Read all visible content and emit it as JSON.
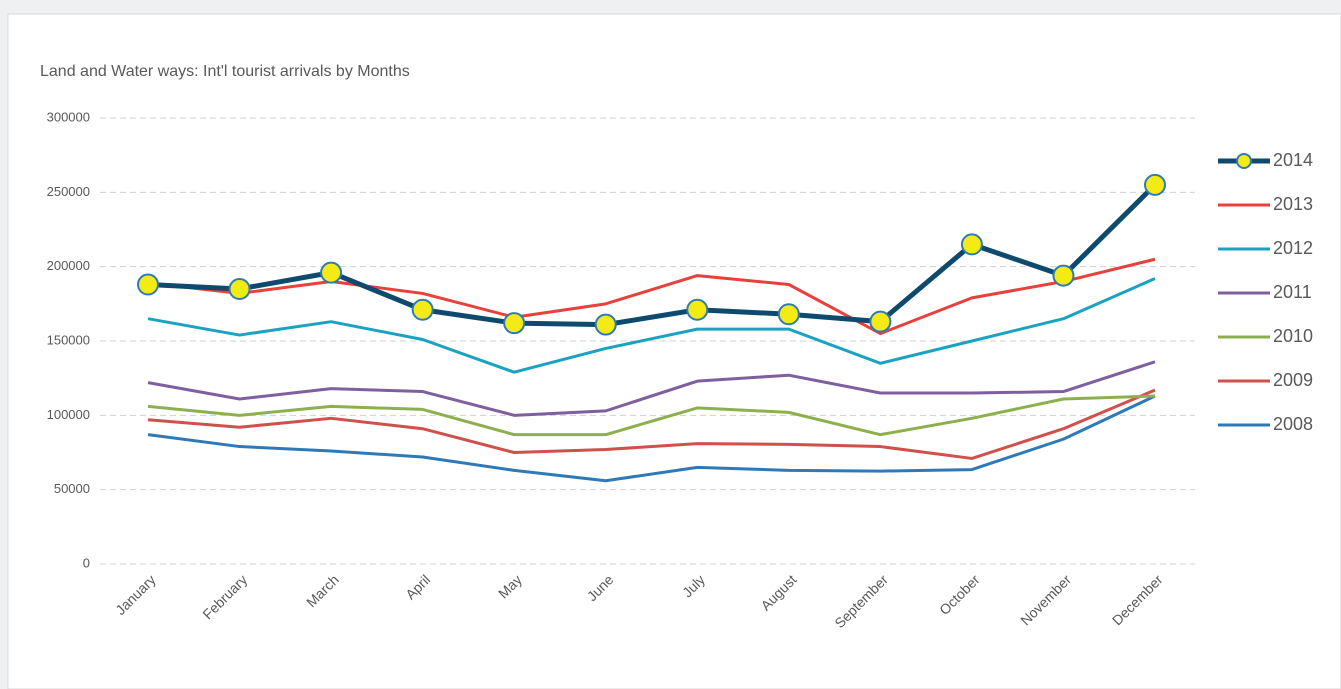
{
  "chart_data": {
    "type": "line",
    "title": "Land and Water ways: Int'l tourist arrivals by Months",
    "categories": [
      "January",
      "February",
      "March",
      "April",
      "May",
      "June",
      "July",
      "August",
      "September",
      "October",
      "November",
      "December"
    ],
    "series": [
      {
        "name": "2014",
        "color": "#0d4a6e",
        "values": [
          188000,
          185000,
          196000,
          171000,
          162000,
          161000,
          171000,
          168000,
          163000,
          215000,
          194000,
          255000
        ]
      },
      {
        "name": "2013",
        "color": "#e8403a",
        "values": [
          189000,
          182000,
          190000,
          182000,
          166000,
          175000,
          194000,
          188000,
          155000,
          179000,
          190000,
          205000
        ]
      },
      {
        "name": "2012",
        "color": "#1aa3c0",
        "values": [
          165000,
          154000,
          163000,
          151000,
          129000,
          145000,
          158000,
          158000,
          135000,
          150000,
          165000,
          192000
        ]
      },
      {
        "name": "2011",
        "color": "#7f5fa0",
        "values": [
          122000,
          111000,
          118000,
          116000,
          100000,
          103000,
          123000,
          127000,
          115000,
          115000,
          116000,
          136000
        ]
      },
      {
        "name": "2010",
        "color": "#8db04f",
        "values": [
          106000,
          100000,
          106000,
          104000,
          87000,
          87000,
          105000,
          102000,
          87000,
          98000,
          111000,
          113000
        ]
      },
      {
        "name": "2009",
        "color": "#d0504c",
        "values": [
          97000,
          92000,
          98000,
          91000,
          75000,
          77000,
          81000,
          80500,
          79000,
          71000,
          91000,
          117000
        ]
      },
      {
        "name": "2008",
        "color": "#2e7ab8",
        "values": [
          87000,
          79000,
          76000,
          72000,
          63000,
          56000,
          65000,
          63000,
          62500,
          63500,
          84000,
          113000
        ]
      }
    ],
    "ylim": [
      0,
      300000
    ],
    "yticks": [
      0,
      50000,
      100000,
      150000,
      200000,
      250000,
      300000
    ],
    "grid": true,
    "legend": "right"
  }
}
